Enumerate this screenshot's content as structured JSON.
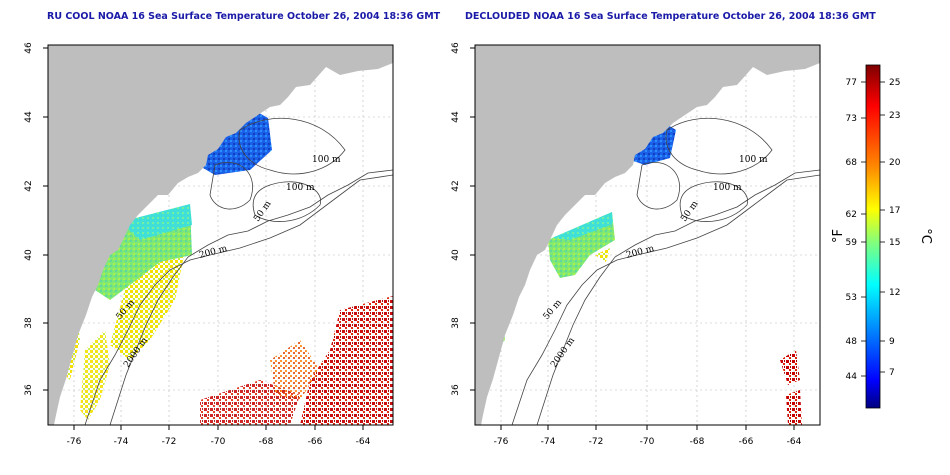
{
  "titles": {
    "left": "RU COOL NOAA 16 Sea Surface Temperature October 26, 2004 18:36 GMT",
    "right": "DECLOUDED NOAA 16 Sea Surface Temperature October 26, 2004 18:36 GMT"
  },
  "axes": {
    "lon_ticks": [
      "-76",
      "-74",
      "-72",
      "-70",
      "-68",
      "-66",
      "-64"
    ],
    "lat_ticks": [
      "36",
      "38",
      "40",
      "42",
      "44",
      "46"
    ]
  },
  "contours": {
    "m100": "100 m",
    "m100b": "100 m",
    "m50": "50 m",
    "m200": "200 m",
    "m50b": "50 m",
    "m2000": "2000 m"
  },
  "colorbar": {
    "f_ticks": [
      "77",
      "73",
      "68",
      "62",
      "59",
      "53",
      "48",
      "44"
    ],
    "c_ticks": [
      "25",
      "23",
      "20",
      "17",
      "15",
      "12",
      "9",
      "7"
    ],
    "f_label": "°F",
    "c_label": "°C",
    "colors": [
      "#7f0000",
      "#ff0000",
      "#ff8c00",
      "#ffff00",
      "#7fff7f",
      "#00ffff",
      "#007fff",
      "#0000ff",
      "#00007f"
    ]
  }
}
